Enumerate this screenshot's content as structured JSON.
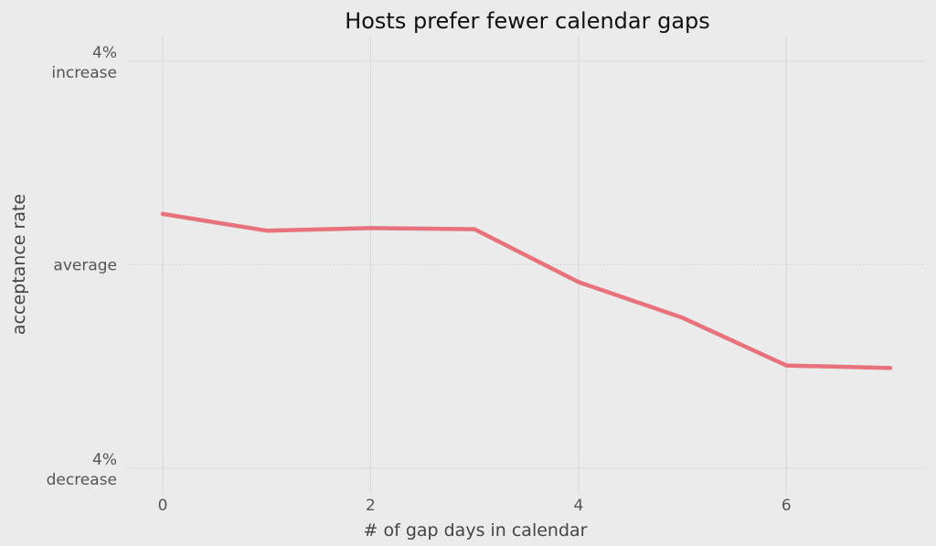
{
  "chart_data": {
    "type": "line",
    "title": "Hosts prefer fewer calendar gaps",
    "xlabel": "# of gap days in calendar",
    "ylabel": "acceptance rate",
    "xlim": [
      0,
      7
    ],
    "ylim": [
      -4,
      4
    ],
    "x_ticks": [
      0,
      2,
      4,
      6
    ],
    "y_ticks": [
      {
        "value": 4,
        "lines": [
          "4%",
          "increase"
        ]
      },
      {
        "value": 0,
        "lines": [
          "average"
        ]
      },
      {
        "value": -4,
        "lines": [
          "4%",
          "decrease"
        ]
      }
    ],
    "grid": true,
    "series": [
      {
        "color": "#e8727c",
        "x": [
          0,
          1,
          2,
          3,
          4,
          5,
          6,
          7
        ],
        "y": [
          1.0,
          0.67,
          0.72,
          0.7,
          -0.34,
          -1.04,
          -1.98,
          -2.03
        ]
      }
    ]
  }
}
